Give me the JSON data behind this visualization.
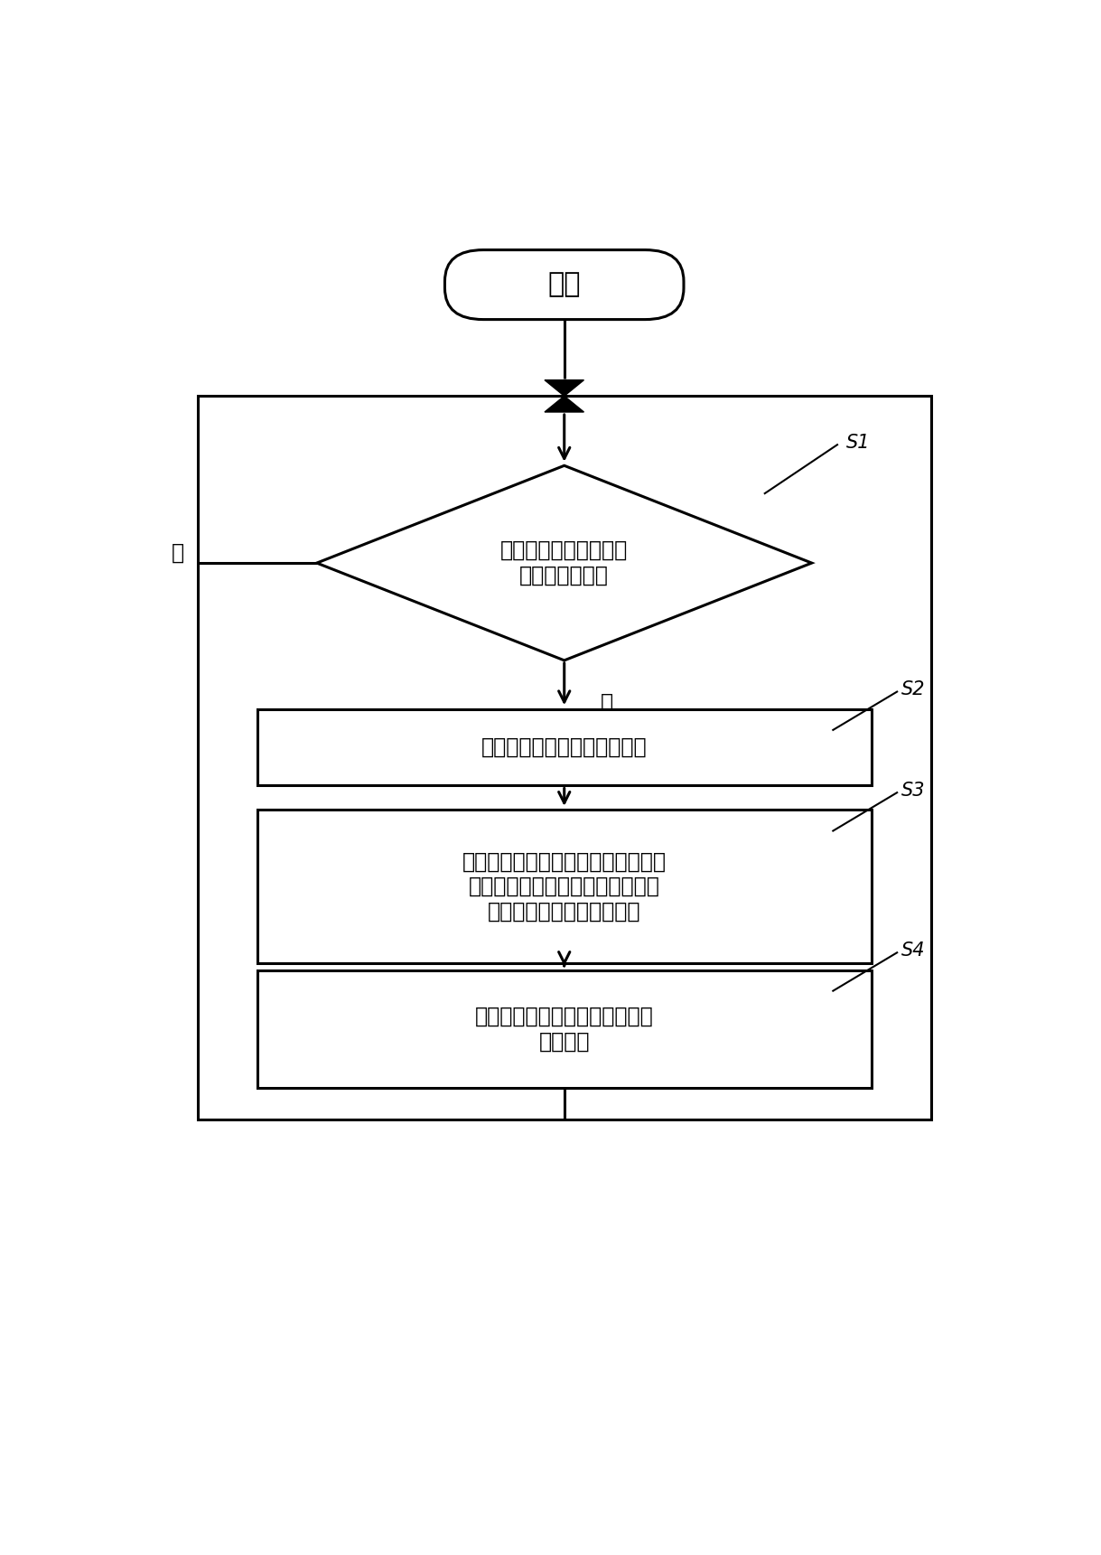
{
  "bg_color": "#ffffff",
  "line_color": "#000000",
  "text_color": "#000000",
  "fig_width": 12.19,
  "fig_height": 17.21,
  "start_label": "开始",
  "diamond_label": "事故侵测模块实时侵测\n是否有事故发生",
  "diamond_step": "S1",
  "no_label": "否",
  "yes_label": "是",
  "box1_label": "事故侵测模块发出一触发讯号",
  "box1_step": "S2",
  "box2_label": "影像压制芯片接收该触发讯号，从暂\n存模块中提取一预设时间段内的影\n像并压制为适合储存的格式",
  "box2_step": "S3",
  "box3_label": "储存模块储存影像压制芯片所压\n制的影像",
  "box3_step": "S4",
  "font_path": "/usr/share/fonts/opentype/noto/NotoSansCJK-Regular.ttc"
}
